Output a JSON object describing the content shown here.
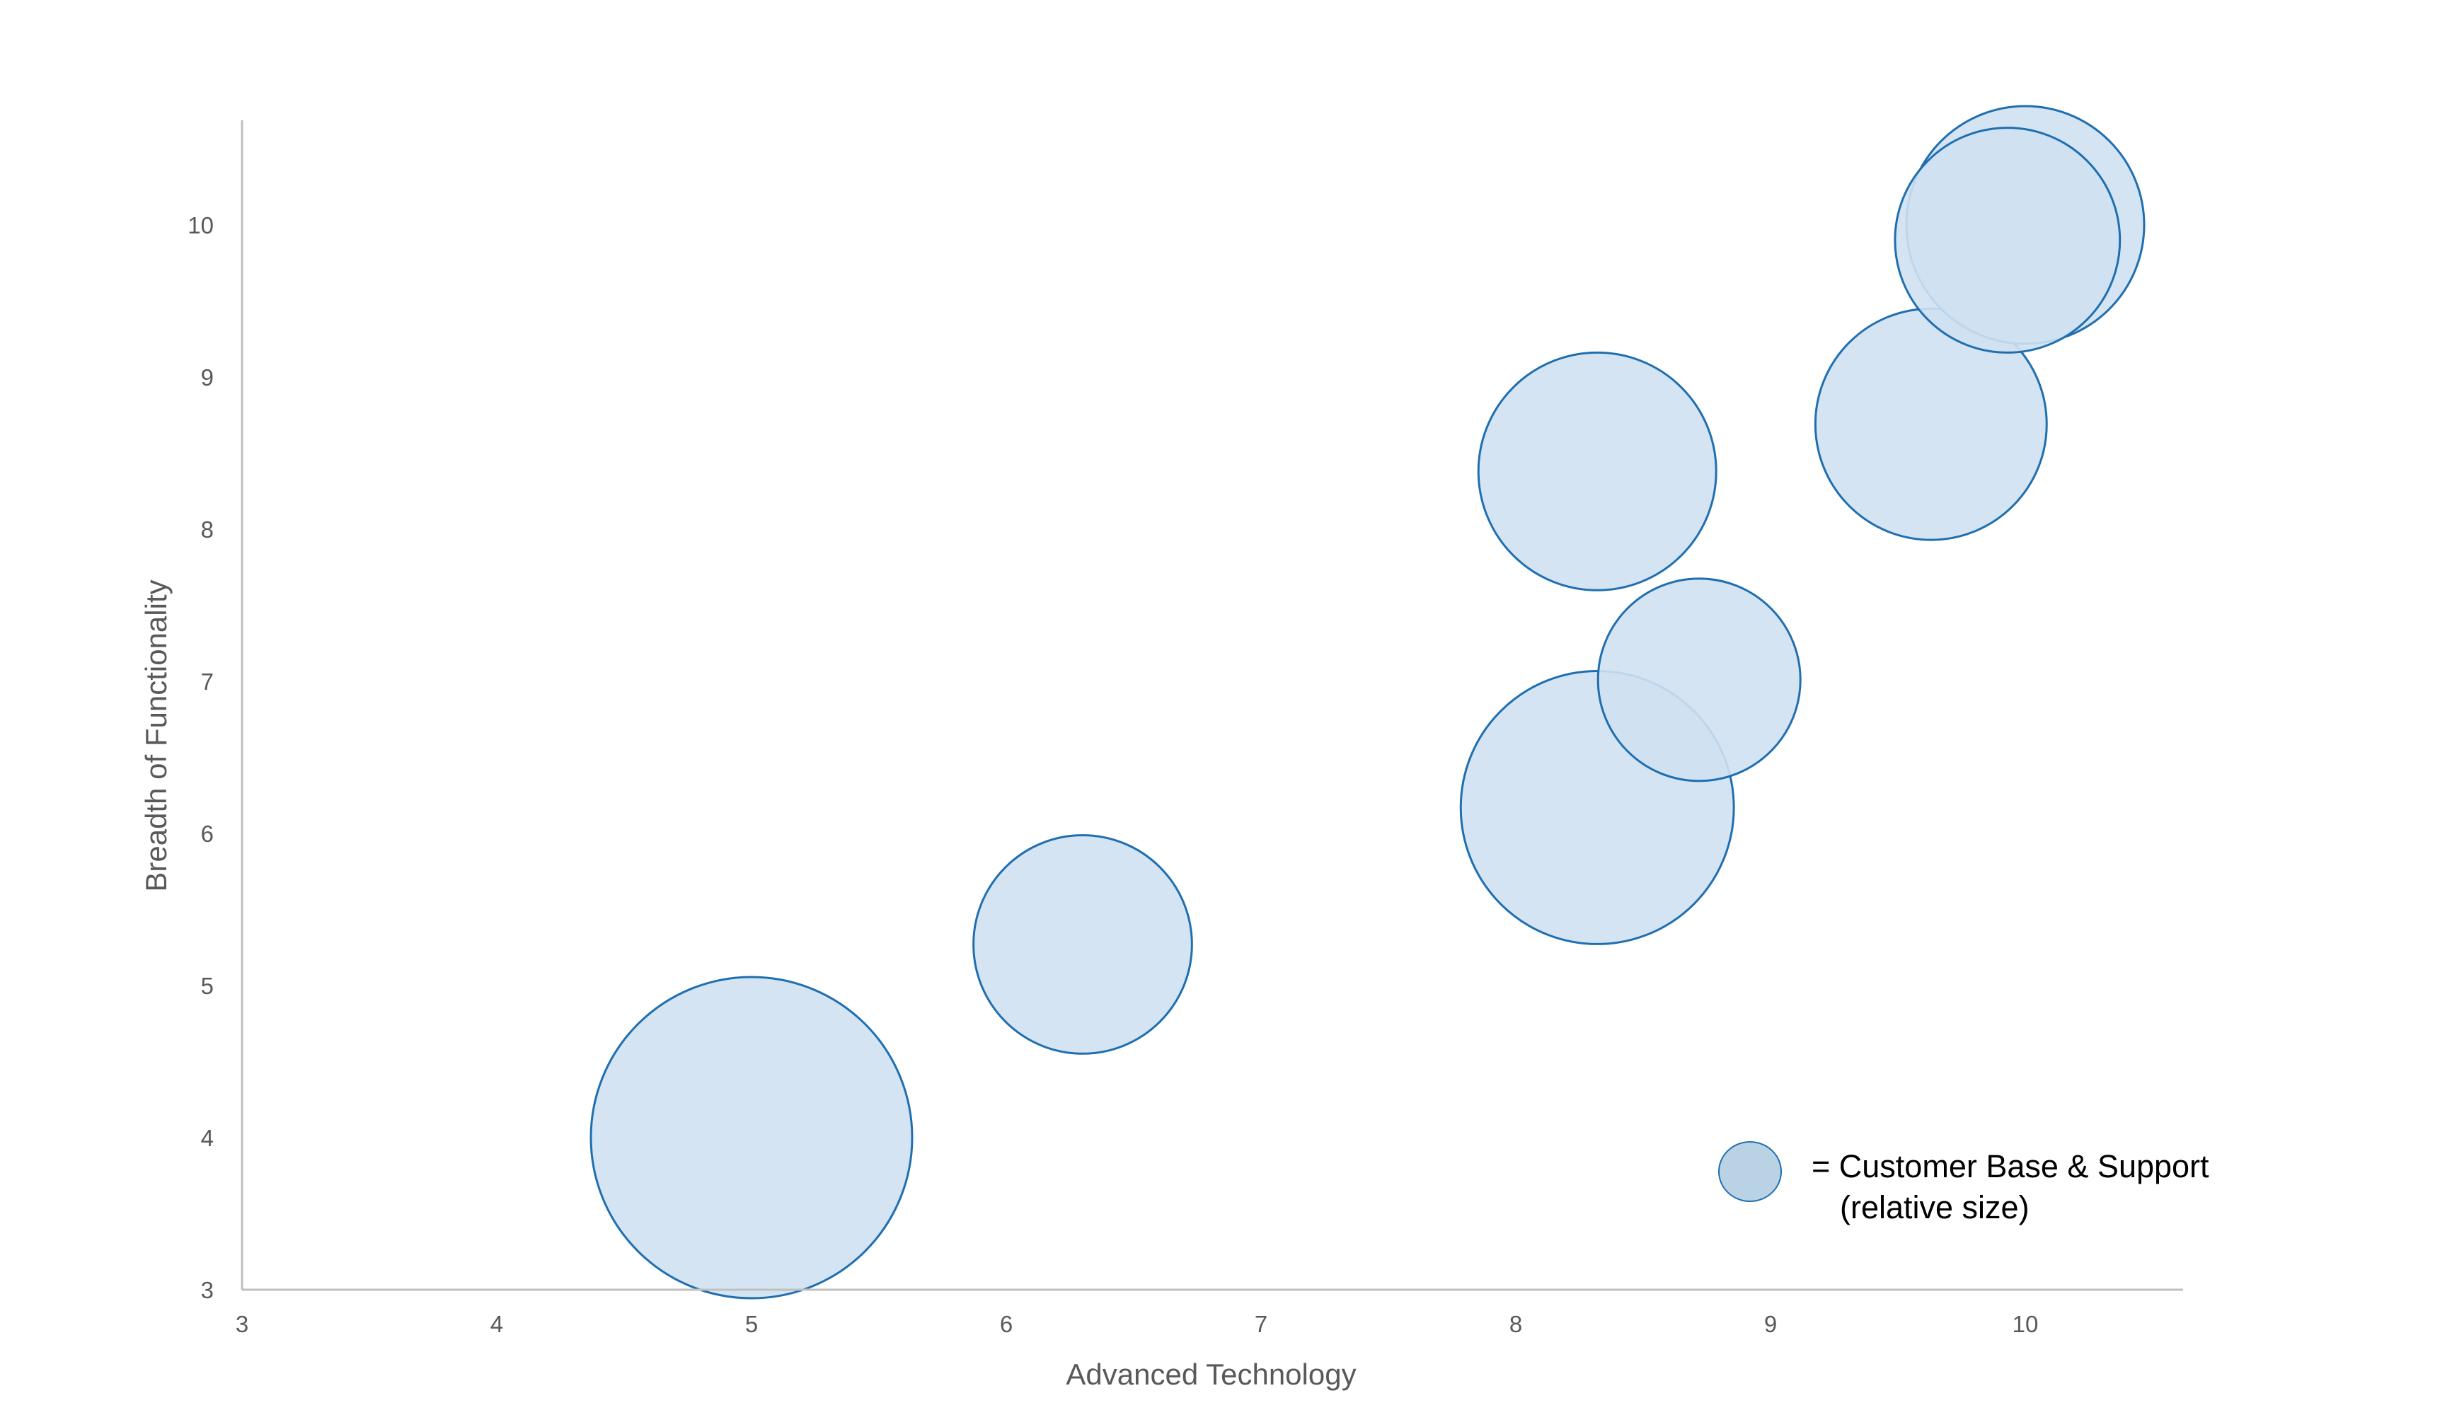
{
  "chart_data": {
    "type": "bubble",
    "xlabel": "Advanced Technology",
    "ylabel": "Breadth of Functionality",
    "xlim": [
      3,
      10.6
    ],
    "ylim": [
      3,
      10.7
    ],
    "xticks": [
      "3",
      "4",
      "5",
      "6",
      "7",
      "8",
      "9",
      "10"
    ],
    "yticks": [
      "3",
      "4",
      "5",
      "6",
      "7",
      "8",
      "9",
      "10"
    ],
    "grid": false,
    "points": [
      {
        "x": 5.0,
        "y": 4.0,
        "size": 1.0
      },
      {
        "x": 6.3,
        "y": 5.27,
        "size": 0.68
      },
      {
        "x": 8.32,
        "y": 6.17,
        "size": 0.85
      },
      {
        "x": 8.72,
        "y": 7.01,
        "size": 0.63
      },
      {
        "x": 8.32,
        "y": 8.38,
        "size": 0.74
      },
      {
        "x": 9.63,
        "y": 8.69,
        "size": 0.72
      },
      {
        "x": 10.0,
        "y": 10.0,
        "size": 0.74
      },
      {
        "x": 9.93,
        "y": 9.9,
        "size": 0.7
      }
    ],
    "legend": {
      "position": "bottom-right",
      "line1": "= Customer Base & Support",
      "line2": "(relative size)"
    },
    "colors": {
      "bubble_fill": "#cfe1f2",
      "bubble_stroke": "#1f6fb0",
      "legend_fill": "#b9d2e4",
      "axis": "#bfbfbf"
    }
  }
}
